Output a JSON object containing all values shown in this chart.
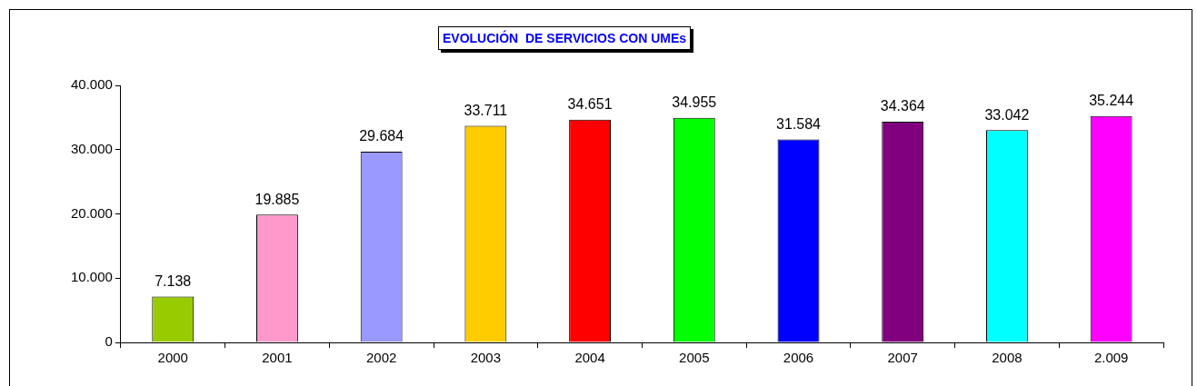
{
  "chart_data": {
    "type": "bar",
    "title": "EVOLUCIÓN  DE SERVICIOS CON UMEs",
    "categories": [
      "2000",
      "2001",
      "2002",
      "2003",
      "2004",
      "2005",
      "2006",
      "2007",
      "2008",
      "2.009"
    ],
    "values": [
      7138,
      19885,
      29684,
      33711,
      34651,
      34955,
      31584,
      34364,
      33042,
      35244
    ],
    "value_labels": [
      "7.138",
      "19.885",
      "29.684",
      "33.711",
      "34.651",
      "34.955",
      "31.584",
      "34.364",
      "33.042",
      "35.244"
    ],
    "colors": [
      "#99cc00",
      "#ff99cc",
      "#9999ff",
      "#ffcc00",
      "#ff0000",
      "#00ff00",
      "#0000ff",
      "#800080",
      "#00ffff",
      "#ff00ff"
    ],
    "ylim": [
      0,
      40000
    ],
    "yticks": [
      0,
      {
        "value": 10000,
        "label": "10.000"
      },
      {
        "value": 20000,
        "label": "20.000"
      },
      {
        "value": 30000,
        "label": "30.000"
      },
      {
        "value": 40000,
        "label": "40.000"
      }
    ],
    "grid": false,
    "legend": false
  }
}
